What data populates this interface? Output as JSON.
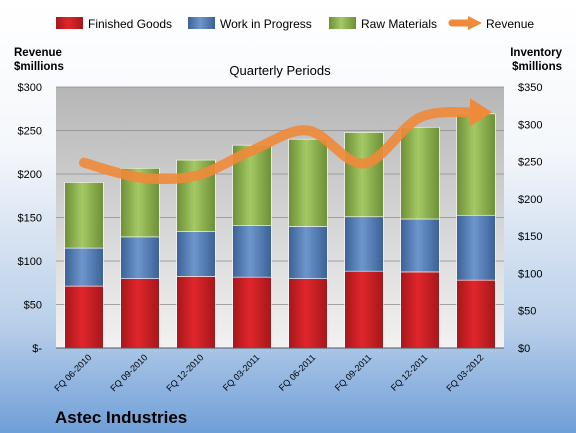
{
  "chart_data": {
    "type": "bar",
    "title": "Quarterly Periods",
    "company": "Astec Industries",
    "y_left_label": [
      "Revenue",
      "$millions"
    ],
    "y_right_label": [
      "Inventory",
      "$millions"
    ],
    "categories": [
      "FQ 06-2010",
      "FQ 09-2010",
      "FQ 12-2010",
      "FQ 03-2011",
      "FQ 06-2011",
      "FQ 09-2011",
      "FQ 12-2011",
      "FQ 03-2012"
    ],
    "left_axis": {
      "ylim": [
        0,
        300
      ],
      "ticks": [
        "$-",
        "$50",
        "$100",
        "$150",
        "$200",
        "$250",
        "$300"
      ]
    },
    "right_axis": {
      "ylim": [
        0,
        350
      ],
      "ticks": [
        "$0",
        "$50",
        "$100",
        "$150",
        "$200",
        "$250",
        "$300",
        "$350"
      ]
    },
    "legend_position": "top",
    "grid": true,
    "series": [
      {
        "name": "Finished Goods",
        "type": "stacked-bar",
        "axis": "right",
        "color": "#e0262c",
        "values": [
          83,
          93,
          96,
          95,
          93,
          103,
          102,
          91
        ]
      },
      {
        "name": "Work in Progress",
        "type": "stacked-bar",
        "axis": "right",
        "color": "#4f7fbf",
        "values": [
          51,
          56,
          60,
          69,
          70,
          73,
          71,
          87
        ]
      },
      {
        "name": "Raw Materials",
        "type": "stacked-bar",
        "axis": "right",
        "color": "#92bd4c",
        "values": [
          88,
          92,
          96,
          108,
          117,
          113,
          123,
          136
        ]
      },
      {
        "name": "Revenue",
        "type": "line",
        "axis": "left",
        "color": "#ef8a3a",
        "values": [
          213,
          196,
          198,
          227,
          250,
          212,
          265,
          271
        ]
      }
    ]
  }
}
